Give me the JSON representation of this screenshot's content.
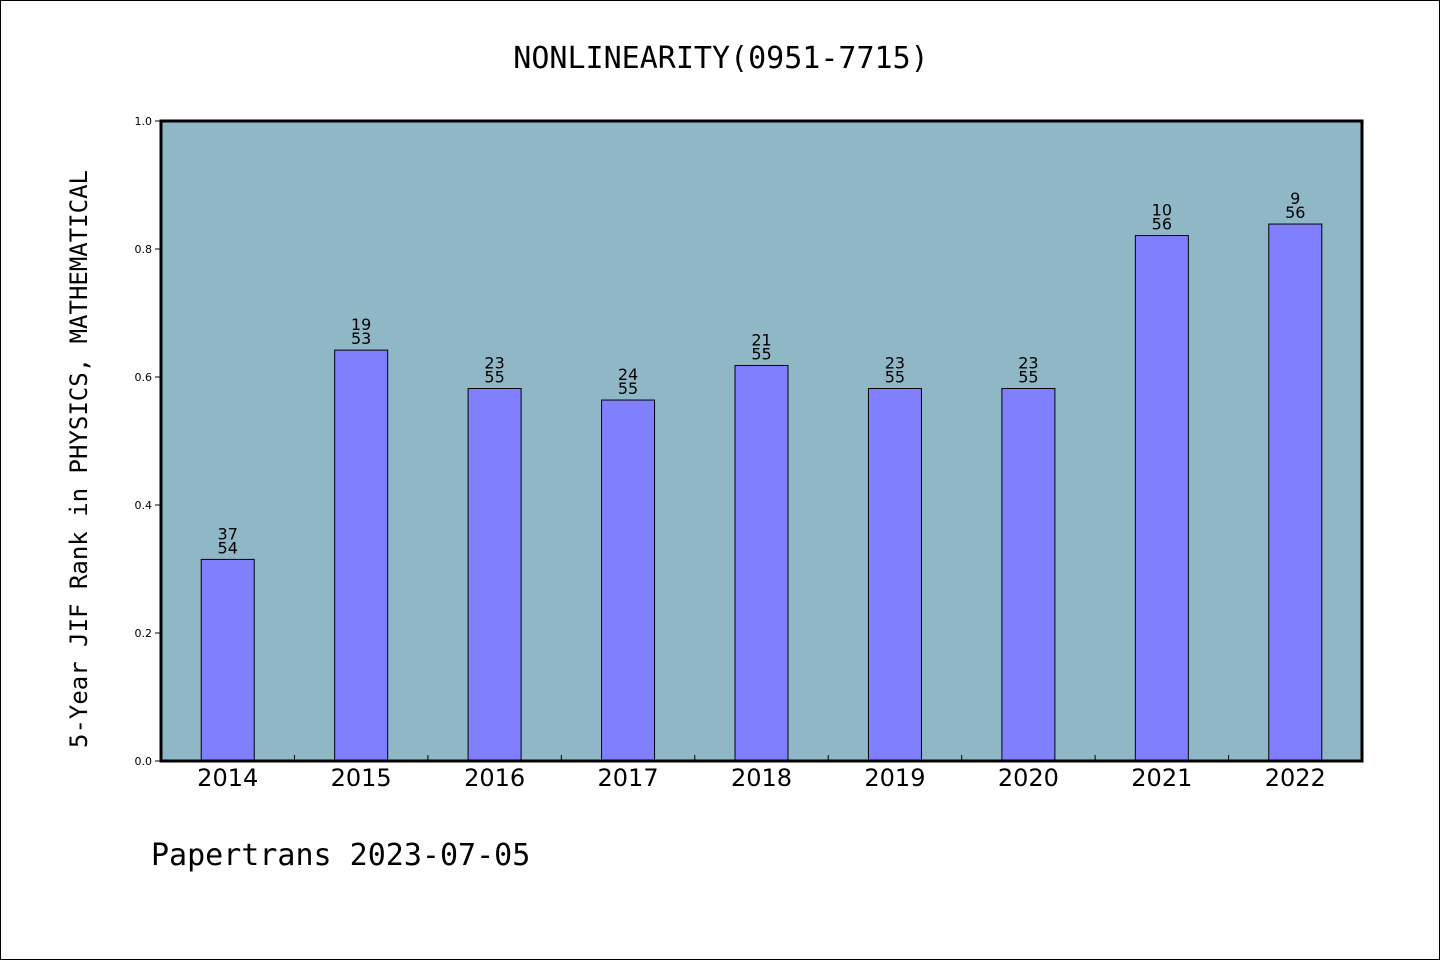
{
  "chart_data": {
    "type": "bar",
    "title": "NONLINEARITY(0951-7715)",
    "xlabel": "",
    "ylabel": "5-Year JIF Rank in PHYSICS, MATHEMATICAL",
    "ylim": [
      0.0,
      1.0
    ],
    "yticks": [
      "0.0",
      "0.2",
      "0.4",
      "0.6",
      "0.8",
      "1.0"
    ],
    "categories": [
      "2014",
      "2015",
      "2016",
      "2017",
      "2018",
      "2019",
      "2020",
      "2021",
      "2022"
    ],
    "values": [
      0.315,
      0.642,
      0.582,
      0.564,
      0.618,
      0.582,
      0.582,
      0.821,
      0.839
    ],
    "ranks": [
      "37",
      "19",
      "23",
      "24",
      "21",
      "23",
      "23",
      "10",
      "9"
    ],
    "totals": [
      "54",
      "53",
      "55",
      "55",
      "55",
      "55",
      "55",
      "56",
      "56"
    ],
    "grid": false,
    "legend": "none",
    "colors": {
      "plot_background": "#8fb7c6",
      "bar_fill": "#8080ff",
      "bar_stroke": "#000000"
    }
  },
  "footer": "Papertrans 2023-07-05"
}
